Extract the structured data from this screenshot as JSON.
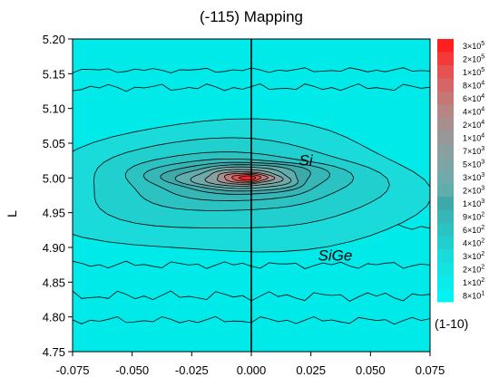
{
  "chart_data": {
    "type": "heatmap",
    "subtype": "contour-map",
    "title": "(-115) Mapping",
    "xlabel": "(1-10)",
    "ylabel": "L",
    "xlim": [
      -0.075,
      0.075
    ],
    "ylim": [
      4.75,
      5.2
    ],
    "x_ticks": [
      "-0.075",
      "-0.050",
      "-0.025",
      "0.000",
      "0.025",
      "0.050",
      "0.075"
    ],
    "x_tick_values": [
      -0.075,
      -0.05,
      -0.025,
      0.0,
      0.025,
      0.05,
      0.075
    ],
    "y_ticks": [
      "4.75",
      "4.80",
      "4.85",
      "4.90",
      "4.95",
      "5.00",
      "5.05",
      "5.10",
      "5.15",
      "5.20"
    ],
    "y_tick_values": [
      4.75,
      4.8,
      4.85,
      4.9,
      4.95,
      5.0,
      5.05,
      5.1,
      5.15,
      5.2
    ],
    "colorbar_levels": [
      {
        "mantissa": "3",
        "exp": "5",
        "color": "#ff1f1f"
      },
      {
        "mantissa": "2",
        "exp": "5",
        "color": "#f33a39"
      },
      {
        "mantissa": "1",
        "exp": "5",
        "color": "#e45251"
      },
      {
        "mantissa": "8",
        "exp": "4",
        "color": "#d46665"
      },
      {
        "mantissa": "6",
        "exp": "4",
        "color": "#c57776"
      },
      {
        "mantissa": "4",
        "exp": "4",
        "color": "#b68584"
      },
      {
        "mantissa": "2",
        "exp": "4",
        "color": "#a78f8f"
      },
      {
        "mantissa": "1",
        "exp": "4",
        "color": "#989898"
      },
      {
        "mantissa": "7",
        "exp": "3",
        "color": "#8a9f9f"
      },
      {
        "mantissa": "5",
        "exp": "3",
        "color": "#7da5a5"
      },
      {
        "mantissa": "3",
        "exp": "3",
        "color": "#70aaaa"
      },
      {
        "mantissa": "2",
        "exp": "3",
        "color": "#5fadad"
      },
      {
        "mantissa": "1",
        "exp": "3",
        "color": "#3fa8a8"
      },
      {
        "mantissa": "9",
        "exp": "2",
        "color": "#36b6b6"
      },
      {
        "mantissa": "6",
        "exp": "2",
        "color": "#2cc2c2"
      },
      {
        "mantissa": "4",
        "exp": "2",
        "color": "#22cfcf"
      },
      {
        "mantissa": "3",
        "exp": "2",
        "color": "#1adada"
      },
      {
        "mantissa": "2",
        "exp": "2",
        "color": "#12e3e3"
      },
      {
        "mantissa": "1",
        "exp": "2",
        "color": "#0bebeb"
      },
      {
        "mantissa": "8",
        "exp": "1",
        "color": "#04f2f2"
      }
    ],
    "contour_levels": [
      {
        "cx": -0.0015,
        "cy": 5.0,
        "rx": 0.0035,
        "ry": 0.003,
        "color": "#ff1f1f"
      },
      {
        "cx": -0.002,
        "cy": 5.0,
        "rx": 0.006,
        "ry": 0.005,
        "color": "#e45251"
      },
      {
        "cx": -0.0025,
        "cy": 5.0,
        "rx": 0.009,
        "ry": 0.007,
        "color": "#c57776"
      },
      {
        "cx": -0.003,
        "cy": 5.0,
        "rx": 0.012,
        "ry": 0.009,
        "color": "#a78f8f"
      },
      {
        "cx": -0.0035,
        "cy": 5.0,
        "rx": 0.016,
        "ry": 0.012,
        "color": "#8a9f9f"
      },
      {
        "cx": -0.004,
        "cy": 5.0,
        "rx": 0.0205,
        "ry": 0.0155,
        "color": "#70aaaa"
      },
      {
        "cx": -0.0045,
        "cy": 5.0,
        "rx": 0.0255,
        "ry": 0.019,
        "color": "#5fadad"
      },
      {
        "cx": -0.005,
        "cy": 5.0,
        "rx": 0.031,
        "ry": 0.023,
        "color": "#3fa8a8"
      },
      {
        "cx": -0.006,
        "cy": 4.998,
        "rx": 0.038,
        "ry": 0.03,
        "color": "#36b6b6"
      },
      {
        "cx": -0.007,
        "cy": 4.995,
        "rx": 0.047,
        "ry": 0.042,
        "color": "#2cc2c2"
      },
      {
        "cx": -0.008,
        "cy": 4.99,
        "rx": 0.062,
        "ry": 0.065,
        "color": "#22cfcf"
      },
      {
        "cx": -0.009,
        "cy": 4.985,
        "rx": 0.082,
        "ry": 0.095,
        "color": "#1adada"
      }
    ],
    "side_contours": [
      {
        "y_center": 4.93,
        "amp": 0.006,
        "color": "#1adada"
      },
      {
        "y_center": 4.875,
        "amp": 0.006,
        "color": "#22cfcf"
      },
      {
        "y_center": 4.83,
        "amp": 0.008,
        "color": "#1adada"
      },
      {
        "y_center": 4.795,
        "amp": 0.006,
        "color": "#12e3e3"
      },
      {
        "y_center": 5.13,
        "amp": 0.006,
        "color": "#12e3e3"
      },
      {
        "y_center": 5.155,
        "amp": 0.004,
        "color": "#0bebeb"
      }
    ],
    "background_color": "#00eaea",
    "vertical_line_x": 0.0,
    "annotations": [
      {
        "text": "Si",
        "x": 0.02,
        "y": 5.018
      },
      {
        "text": "SiGe",
        "x": 0.028,
        "y": 4.881
      }
    ],
    "grid": false,
    "colorbar": "right"
  }
}
